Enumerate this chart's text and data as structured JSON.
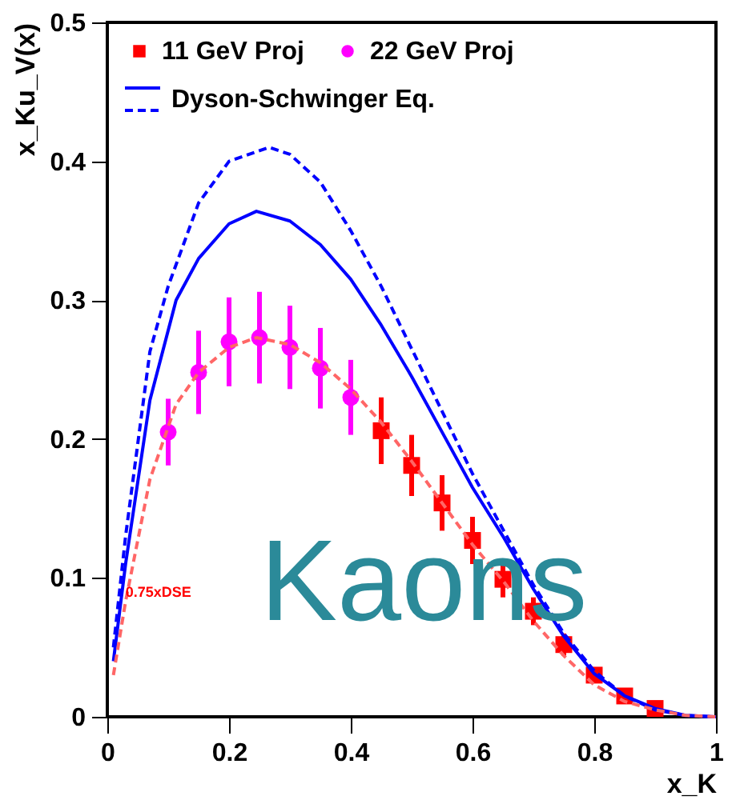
{
  "chart_data": {
    "type": "scatter",
    "xlabel": "x_K",
    "ylabel": "x_Ku_V(x)",
    "xlim": [
      0,
      1
    ],
    "ylim": [
      0,
      0.5
    ],
    "xticks": [
      0,
      0.2,
      0.4,
      0.6,
      0.8,
      1
    ],
    "yticks": [
      0,
      0.1,
      0.2,
      0.3,
      0.4,
      0.5
    ],
    "grid": false,
    "legend": "top left",
    "annotations": [
      "0.75xDSE",
      "Kaons"
    ],
    "series": [
      {
        "name": "11 GeV Proj",
        "marker": "square",
        "color": "#ff0000",
        "x": [
          0.45,
          0.5,
          0.55,
          0.6,
          0.65,
          0.7,
          0.75,
          0.8,
          0.85,
          0.9
        ],
        "values": [
          0.206,
          0.181,
          0.154,
          0.127,
          0.099,
          0.076,
          0.052,
          0.03,
          0.015,
          0.006
        ],
        "errors": [
          0.024,
          0.022,
          0.02,
          0.017,
          0.013,
          0.01,
          0.008,
          null,
          null,
          null
        ]
      },
      {
        "name": "22 GeV Proj",
        "marker": "circle",
        "color": "#ff00ff",
        "x": [
          0.1,
          0.15,
          0.2,
          0.25,
          0.3,
          0.35,
          0.4
        ],
        "values": [
          0.205,
          0.248,
          0.27,
          0.273,
          0.266,
          0.251,
          0.23
        ],
        "errors": [
          0.024,
          0.03,
          0.032,
          0.033,
          0.03,
          0.029,
          0.027
        ]
      },
      {
        "name": "Dyson-Schwinger Eq.",
        "type": "line",
        "line_style": "solid",
        "color": "#0000ff",
        "x": [
          0.01,
          0.03,
          0.07,
          0.113,
          0.15,
          0.2,
          0.245,
          0.3,
          0.35,
          0.4,
          0.45,
          0.5,
          0.55,
          0.6,
          0.65,
          0.7,
          0.75,
          0.8,
          0.85,
          0.9,
          0.95,
          1
        ],
        "values": [
          0.04,
          0.11,
          0.228,
          0.3,
          0.33,
          0.355,
          0.364,
          0.357,
          0.34,
          0.315,
          0.282,
          0.245,
          0.205,
          0.165,
          0.13,
          0.092,
          0.058,
          0.031,
          0.015,
          0.006,
          0.001,
          0
        ]
      },
      {
        "type": "line",
        "line_style": "dashed",
        "color": "#0000ff",
        "x": [
          0.01,
          0.03,
          0.07,
          0.1,
          0.15,
          0.2,
          0.266,
          0.3,
          0.35,
          0.4,
          0.45,
          0.5,
          0.55,
          0.6,
          0.65,
          0.7,
          0.75,
          0.8,
          0.85,
          0.9,
          0.95,
          1
        ],
        "values": [
          0.05,
          0.13,
          0.263,
          0.31,
          0.37,
          0.4,
          0.41,
          0.405,
          0.385,
          0.35,
          0.31,
          0.265,
          0.22,
          0.175,
          0.135,
          0.095,
          0.06,
          0.033,
          0.015,
          0.005,
          0.001,
          0
        ]
      },
      {
        "type": "line",
        "line_style": "dashed",
        "color": "#ff6666",
        "x": [
          0.01,
          0.03,
          0.07,
          0.113,
          0.15,
          0.2,
          0.245,
          0.3,
          0.35,
          0.4,
          0.45,
          0.5,
          0.55,
          0.6,
          0.65,
          0.7,
          0.75,
          0.8,
          0.85,
          0.9,
          0.95,
          1
        ],
        "values": [
          0.03,
          0.083,
          0.171,
          0.225,
          0.248,
          0.266,
          0.273,
          0.268,
          0.255,
          0.236,
          0.212,
          0.184,
          0.154,
          0.124,
          0.098,
          0.069,
          0.044,
          0.023,
          0.011,
          0.005,
          0.001,
          0
        ]
      }
    ]
  }
}
